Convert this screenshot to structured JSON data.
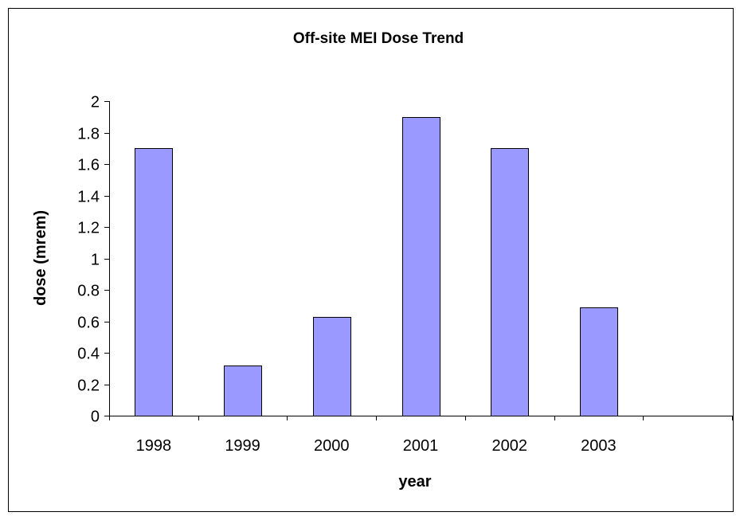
{
  "chart_data": {
    "type": "bar",
    "title": "Off-site MEI Dose Trend",
    "xlabel": "year",
    "ylabel": "dose (mrem)",
    "categories": [
      "1998",
      "1999",
      "2000",
      "2001",
      "2002",
      "2003",
      ""
    ],
    "values": [
      1.7,
      0.32,
      0.63,
      1.9,
      1.7,
      0.69,
      null
    ],
    "ylim": [
      0,
      2
    ],
    "yticks": [
      "0",
      "0.2",
      "0.4",
      "0.6",
      "0.8",
      "1",
      "1.2",
      "1.4",
      "1.6",
      "1.8",
      "2"
    ],
    "grid": false,
    "legend": "none",
    "bar_color": "#9999FF",
    "bar_edge_color": "#000000"
  }
}
